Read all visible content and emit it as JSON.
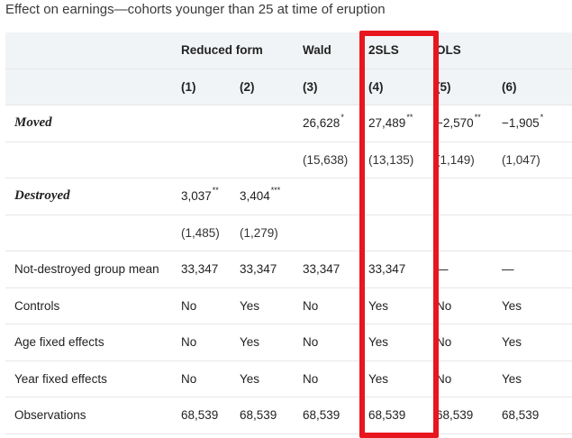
{
  "caption": "Effect on earnings—cohorts younger than 25 at time of eruption",
  "header": {
    "groups": [
      "Reduced form",
      "Wald",
      "2SLS",
      "OLS"
    ],
    "columns": [
      "(1)",
      "(2)",
      "(3)",
      "(4)",
      "(5)",
      "(6)"
    ]
  },
  "rows": {
    "moved": {
      "label": "Moved",
      "cells": [
        "",
        "",
        "26,628",
        "27,489",
        "−2,570",
        "−1,905"
      ],
      "stars": [
        "",
        "",
        "*",
        "**",
        "**",
        "*"
      ]
    },
    "moved_se": {
      "cells": [
        "",
        "",
        "(15,638)",
        "(13,135)",
        "(1,149)",
        "(1,047)"
      ]
    },
    "destroyed": {
      "label": "Destroyed",
      "cells": [
        "3,037",
        "3,404",
        "",
        "",
        "",
        ""
      ],
      "stars": [
        "**",
        "***",
        "",
        "",
        "",
        ""
      ]
    },
    "destroyed_se": {
      "cells": [
        "(1,485)",
        "(1,279)",
        "",
        "",
        "",
        ""
      ]
    },
    "group_mean": {
      "label": "Not-destroyed group mean",
      "cells": [
        "33,347",
        "33,347",
        "33,347",
        "33,347",
        "—",
        "—"
      ]
    },
    "controls": {
      "label": "Controls",
      "cells": [
        "No",
        "Yes",
        "No",
        "Yes",
        "No",
        "Yes"
      ]
    },
    "age_fe": {
      "label": "Age fixed effects",
      "cells": [
        "No",
        "Yes",
        "No",
        "Yes",
        "No",
        "Yes"
      ]
    },
    "year_fe": {
      "label": "Year fixed effects",
      "cells": [
        "No",
        "Yes",
        "No",
        "Yes",
        "No",
        "Yes"
      ]
    },
    "observations": {
      "label": "Observations",
      "cells": [
        "68,539",
        "68,539",
        "68,539",
        "68,539",
        "68,539",
        "68,539"
      ]
    }
  },
  "colors": {
    "highlight_border": "#e8161e",
    "header_background": "#f1f4f6"
  }
}
